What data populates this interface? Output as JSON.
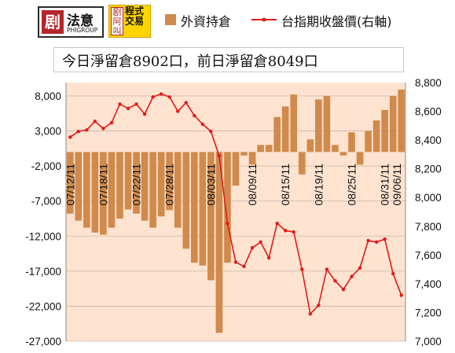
{
  "logos": {
    "brand1_mark": "剧",
    "brand1_name": "法意",
    "brand1_sub": "PHIGROUP",
    "brand2_mark": "剧阿叫",
    "brand2_text": "程式交易"
  },
  "banner": "今日淨留倉8902口，前日淨留倉8049口",
  "chart_data": {
    "type": "bar",
    "series": [
      {
        "name": "外資持倉",
        "type": "bar",
        "axis": "left",
        "color": "#d08a4c",
        "values": [
          -8800,
          -9800,
          -10800,
          -11500,
          -11800,
          -10800,
          -9500,
          -8200,
          -8800,
          -9800,
          -10800,
          -9200,
          -8300,
          -10800,
          -13800,
          -15800,
          -16200,
          -18300,
          -25800,
          -15800,
          -4800,
          -500,
          -1800,
          1000,
          1000,
          5000,
          6500,
          8200,
          -3200,
          1800,
          7500,
          8000,
          1000,
          -500,
          2800,
          -1800,
          3000,
          4500,
          6000,
          8000,
          8900
        ]
      },
      {
        "name": "台指期收盤價(右軸)",
        "type": "line",
        "axis": "right",
        "color": "#e11b1b",
        "values": [
          8420,
          8460,
          8470,
          8530,
          8480,
          8520,
          8650,
          8620,
          8650,
          8580,
          8700,
          8720,
          8700,
          8600,
          8660,
          8570,
          8510,
          8460,
          8290,
          7820,
          7550,
          7520,
          7650,
          7690,
          7580,
          7820,
          7770,
          7760,
          7500,
          7190,
          7250,
          7500,
          7420,
          7360,
          7450,
          7510,
          7700,
          7690,
          7710,
          7470,
          7320
        ]
      }
    ],
    "x_tick_labels": [
      "07/12/11",
      "07/18/11",
      "07/22/11",
      "07/28/11",
      "08/03/11",
      "08/09/11",
      "08/15/11",
      "08/19/11",
      "08/25/11",
      "08/31/11",
      "09/06/11"
    ],
    "x_tick_index": [
      0,
      4,
      8,
      12,
      17,
      22,
      26,
      30,
      34,
      38,
      41
    ],
    "y_left": {
      "min": -27000,
      "max": 8000,
      "ticks": [
        "8,000",
        "3,000",
        "-2,000",
        "-7,000",
        "-12,000",
        "-17,000",
        "-22,000",
        "-27,000"
      ],
      "tick_values": [
        8000,
        3000,
        -2000,
        -7000,
        -12000,
        -17000,
        -22000,
        -27000
      ]
    },
    "y_right": {
      "min": 7000,
      "max": 8800,
      "ticks": [
        "8,800",
        "8,600",
        "8,400",
        "8,200",
        "8,000",
        "7,800",
        "7,600",
        "7,400",
        "7,200",
        "7,000"
      ],
      "tick_values": [
        8800,
        8600,
        8400,
        8200,
        8000,
        7800,
        7600,
        7400,
        7200,
        7000
      ]
    },
    "plot_background": "#fde3d0",
    "grid": true,
    "legend_position": "top"
  }
}
